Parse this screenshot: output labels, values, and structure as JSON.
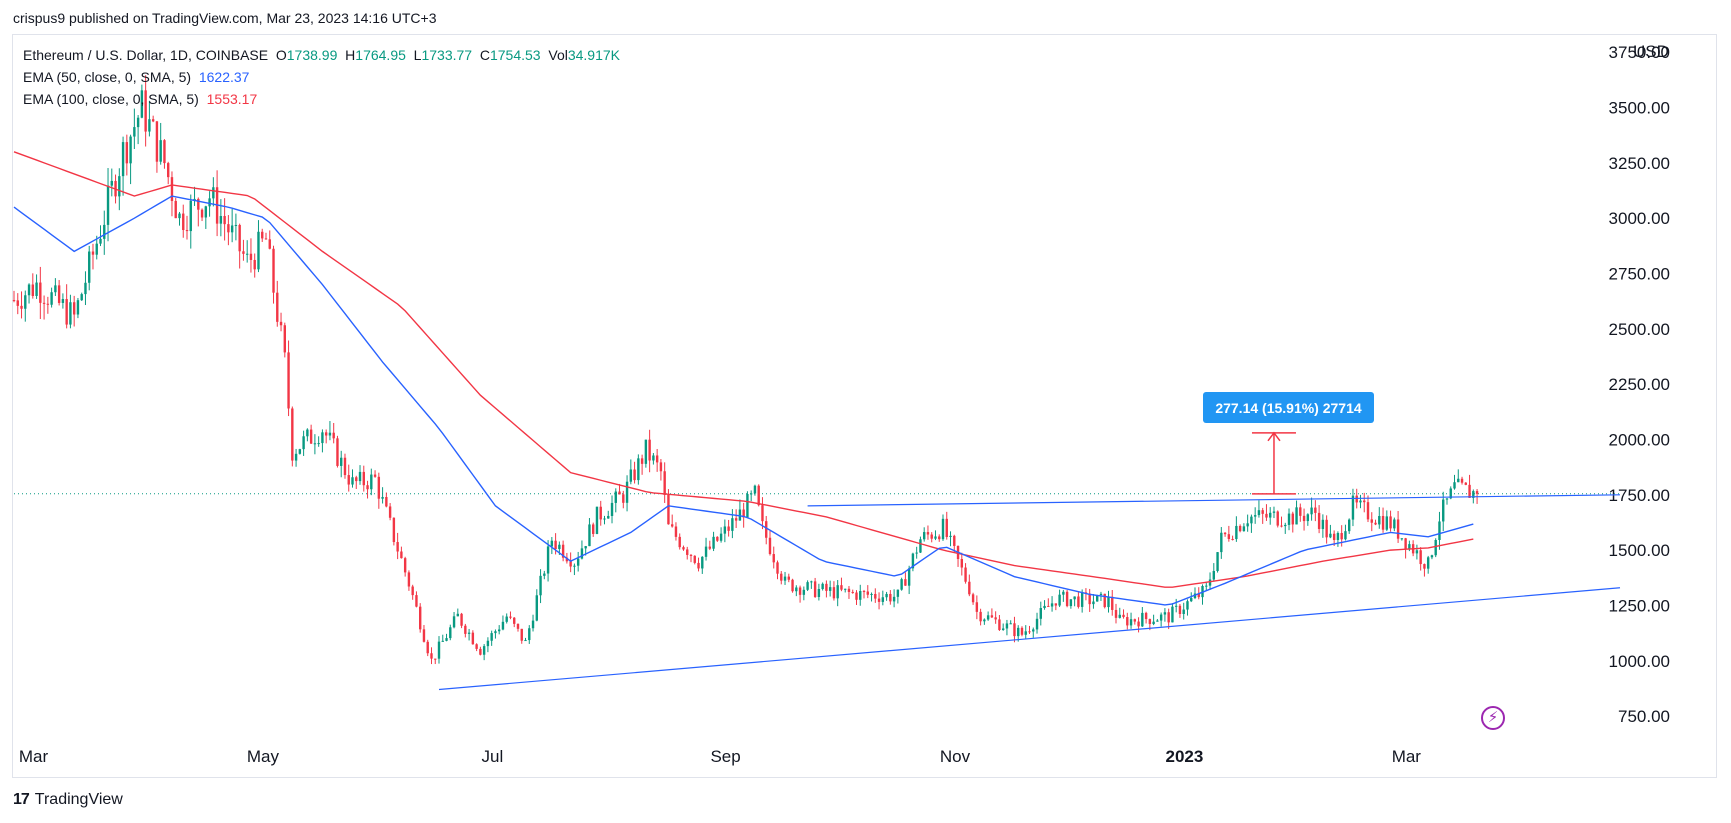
{
  "header": {
    "published_by": "crispus9 published on TradingView.com, Mar 23, 2023 14:16 UTC+3"
  },
  "legend": {
    "symbol": "Ethereum / U.S. Dollar, 1D, COINBASE",
    "o_label": "O",
    "o_value": "1738.99",
    "h_label": "H",
    "h_value": "1764.95",
    "l_label": "L",
    "l_value": "1733.77",
    "c_label": "C",
    "c_value": "1754.53",
    "vol_label": "Vol",
    "vol_value": "34.917K",
    "ema50_label": "EMA (50, close, 0, SMA, 5)",
    "ema50_value": "1622.37",
    "ema100_label": "EMA (100, close, 0, SMA, 5)",
    "ema100_value": "1553.17"
  },
  "currency": "USD",
  "measure_label": "277.14 (15.91%) 27714",
  "footer": {
    "logo": "17",
    "brand": "TradingView"
  },
  "colors": {
    "up": "#089981",
    "down": "#f23645",
    "ema50": "#2962ff",
    "ema100": "#f23645",
    "trendline": "#2962ff",
    "measure": "#2196f3",
    "alert": "#9c27b0"
  },
  "icons": {
    "alert": "flash-icon"
  },
  "chart_data": {
    "type": "candlestick",
    "interval": "1D",
    "ylim": [
      660,
      3760
    ],
    "y_ticks": [
      "750.00",
      "1000.00",
      "1250.00",
      "1500.00",
      "1750.00",
      "2000.00",
      "2250.00",
      "2500.00",
      "2750.00",
      "3000.00",
      "3250.00",
      "3500.00",
      "3750.00"
    ],
    "x_tick_labels": [
      "Mar",
      "May",
      "Jul",
      "Sep",
      "Nov",
      "2023",
      "Mar"
    ],
    "last_price": 1754.53,
    "price_anchors": [
      [
        "2022-02-27",
        2630
      ],
      [
        "2022-03-05",
        2700
      ],
      [
        "2022-03-15",
        2550
      ],
      [
        "2022-03-22",
        2950
      ],
      [
        "2022-03-28",
        3300
      ],
      [
        "2022-04-02",
        3500
      ],
      [
        "2022-04-08",
        3250
      ],
      [
        "2022-04-12",
        3000
      ],
      [
        "2022-04-20",
        3100
      ],
      [
        "2022-04-30",
        2800
      ],
      [
        "2022-05-05",
        2900
      ],
      [
        "2022-05-10",
        2350
      ],
      [
        "2022-05-12",
        1950
      ],
      [
        "2022-05-20",
        2050
      ],
      [
        "2022-05-28",
        1800
      ],
      [
        "2022-06-03",
        1820
      ],
      [
        "2022-06-12",
        1350
      ],
      [
        "2022-06-18",
        1000
      ],
      [
        "2022-06-25",
        1200
      ],
      [
        "2022-07-01",
        1050
      ],
      [
        "2022-07-08",
        1200
      ],
      [
        "2022-07-13",
        1080
      ],
      [
        "2022-07-20",
        1550
      ],
      [
        "2022-07-26",
        1450
      ],
      [
        "2022-08-01",
        1650
      ],
      [
        "2022-08-08",
        1750
      ],
      [
        "2022-08-14",
        1950
      ],
      [
        "2022-08-18",
        1850
      ],
      [
        "2022-08-20",
        1600
      ],
      [
        "2022-08-28",
        1450
      ],
      [
        "2022-09-05",
        1600
      ],
      [
        "2022-09-12",
        1750
      ],
      [
        "2022-09-14",
        1600
      ],
      [
        "2022-09-20",
        1350
      ],
      [
        "2022-09-28",
        1320
      ],
      [
        "2022-10-10",
        1300
      ],
      [
        "2022-10-20",
        1290
      ],
      [
        "2022-10-26",
        1550
      ],
      [
        "2022-11-01",
        1600
      ],
      [
        "2022-11-08",
        1330
      ],
      [
        "2022-11-10",
        1220
      ],
      [
        "2022-11-22",
        1120
      ],
      [
        "2022-12-01",
        1280
      ],
      [
        "2022-12-15",
        1270
      ],
      [
        "2022-12-18",
        1180
      ],
      [
        "2022-12-31",
        1200
      ],
      [
        "2023-01-10",
        1320
      ],
      [
        "2023-01-14",
        1550
      ],
      [
        "2023-01-21",
        1650
      ],
      [
        "2023-02-02",
        1650
      ],
      [
        "2023-02-08",
        1670
      ],
      [
        "2023-02-13",
        1520
      ],
      [
        "2023-02-18",
        1700
      ],
      [
        "2023-02-28",
        1620
      ],
      [
        "2023-03-09",
        1450
      ],
      [
        "2023-03-10",
        1430
      ],
      [
        "2023-03-13",
        1650
      ],
      [
        "2023-03-17",
        1780
      ],
      [
        "2023-03-23",
        1754.53
      ]
    ],
    "ema50_anchors": [
      [
        "2022-02-27",
        3050
      ],
      [
        "2022-03-15",
        2850
      ],
      [
        "2022-03-31",
        3000
      ],
      [
        "2022-04-10",
        3100
      ],
      [
        "2022-04-25",
        3050
      ],
      [
        "2022-05-05",
        3000
      ],
      [
        "2022-05-20",
        2700
      ],
      [
        "2022-06-05",
        2350
      ],
      [
        "2022-06-20",
        2050
      ],
      [
        "2022-07-05",
        1700
      ],
      [
        "2022-07-25",
        1450
      ],
      [
        "2022-08-10",
        1580
      ],
      [
        "2022-08-20",
        1700
      ],
      [
        "2022-09-10",
        1650
      ],
      [
        "2022-09-30",
        1450
      ],
      [
        "2022-10-20",
        1380
      ],
      [
        "2022-11-01",
        1520
      ],
      [
        "2022-11-20",
        1380
      ],
      [
        "2022-12-10",
        1300
      ],
      [
        "2022-12-31",
        1250
      ],
      [
        "2023-01-15",
        1350
      ],
      [
        "2023-02-05",
        1500
      ],
      [
        "2023-02-28",
        1580
      ],
      [
        "2023-03-10",
        1560
      ],
      [
        "2023-03-23",
        1622.37
      ]
    ],
    "ema100_anchors": [
      [
        "2022-02-27",
        3300
      ],
      [
        "2022-03-31",
        3100
      ],
      [
        "2022-04-10",
        3150
      ],
      [
        "2022-05-01",
        3100
      ],
      [
        "2022-05-20",
        2850
      ],
      [
        "2022-06-10",
        2600
      ],
      [
        "2022-07-01",
        2200
      ],
      [
        "2022-07-25",
        1850
      ],
      [
        "2022-08-15",
        1760
      ],
      [
        "2022-09-10",
        1720
      ],
      [
        "2022-10-01",
        1650
      ],
      [
        "2022-11-01",
        1500
      ],
      [
        "2022-11-20",
        1430
      ],
      [
        "2022-12-15",
        1370
      ],
      [
        "2022-12-31",
        1330
      ],
      [
        "2023-01-20",
        1380
      ],
      [
        "2023-02-10",
        1450
      ],
      [
        "2023-02-28",
        1500
      ],
      [
        "2023-03-10",
        1510
      ],
      [
        "2023-03-23",
        1553.17
      ]
    ],
    "trendlines": [
      {
        "name": "resistance",
        "from": [
          "2022-09-26",
          1700
        ],
        "to": [
          "2023-04-30",
          1750
        ]
      },
      {
        "name": "support",
        "from": [
          "2022-06-20",
          870
        ],
        "to": [
          "2023-04-30",
          1330
        ]
      },
      {
        "name": "last-price",
        "from": [
          "2022-02-27",
          1754.53
        ],
        "to": [
          "2023-04-30",
          1754.53
        ]
      }
    ],
    "measure": {
      "from": [
        "2023-01-28",
        1754
      ],
      "to": [
        "2023-01-28",
        2030
      ]
    },
    "grid": false,
    "legend_position": "top-left"
  }
}
